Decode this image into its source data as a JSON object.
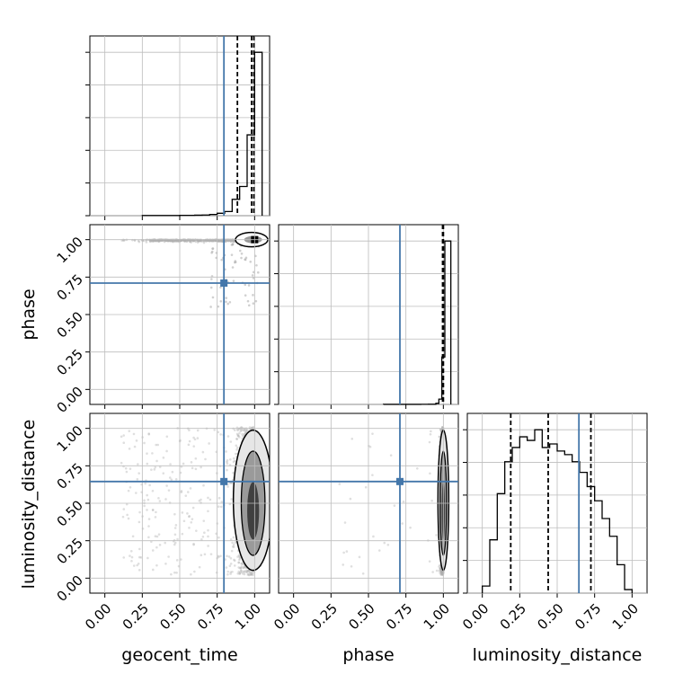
{
  "chart_data": {
    "type": "corner",
    "parameters": [
      "geocent_time",
      "phase",
      "luminosity_distance"
    ],
    "axis_range": [
      -0.1,
      1.1
    ],
    "tick_values": [
      0.0,
      0.25,
      0.5,
      0.75,
      1.0
    ],
    "tick_labels": [
      "0.00",
      "0.25",
      "0.50",
      "0.75",
      "1.00"
    ],
    "grid": true,
    "colors": {
      "truth": "#4477aa",
      "hist": "#000000",
      "points": "#b0b0b0",
      "grid": "#bdbdbd"
    },
    "truths": {
      "geocent_time": 0.795,
      "phase": 0.71,
      "luminosity_distance": 0.645
    },
    "histograms": [
      {
        "parameter": "geocent_time",
        "bin_edges": [
          0.25,
          0.3,
          0.35,
          0.4,
          0.45,
          0.5,
          0.55,
          0.6,
          0.65,
          0.7,
          0.75,
          0.8,
          0.85,
          0.9,
          0.95,
          1.0,
          1.05
        ],
        "counts": [
          1,
          1,
          1,
          1,
          1,
          2,
          2,
          3,
          4,
          7,
          14,
          24,
          95,
          170,
          470,
          950
        ],
        "quantiles": [
          0.885,
          0.98,
          0.995
        ]
      },
      {
        "parameter": "phase",
        "bin_edges": [
          0.6,
          0.65,
          0.7,
          0.75,
          0.8,
          0.85,
          0.9,
          0.95,
          0.97,
          0.99,
          1.01,
          1.05
        ],
        "counts": [
          1,
          1,
          1,
          1,
          1,
          2,
          3,
          20,
          100,
          900,
          3100
        ],
        "quantiles": [
          0.995,
          0.999,
          1.0
        ]
      },
      {
        "parameter": "luminosity_distance",
        "bin_edges": [
          0.0,
          0.05,
          0.1,
          0.15,
          0.2,
          0.25,
          0.3,
          0.35,
          0.4,
          0.45,
          0.5,
          0.55,
          0.6,
          0.65,
          0.7,
          0.75,
          0.8,
          0.85,
          0.9,
          0.95,
          1.0
        ],
        "counts": [
          20,
          150,
          280,
          370,
          410,
          440,
          430,
          460,
          410,
          420,
          400,
          390,
          370,
          340,
          300,
          260,
          210,
          160,
          80,
          10
        ],
        "quantiles": [
          0.19,
          0.44,
          0.725
        ]
      }
    ],
    "scatter_panels": [
      {
        "x": "geocent_time",
        "y": "phase"
      },
      {
        "x": "geocent_time",
        "y": "luminosity_distance"
      },
      {
        "x": "phase",
        "y": "luminosity_distance"
      }
    ]
  }
}
